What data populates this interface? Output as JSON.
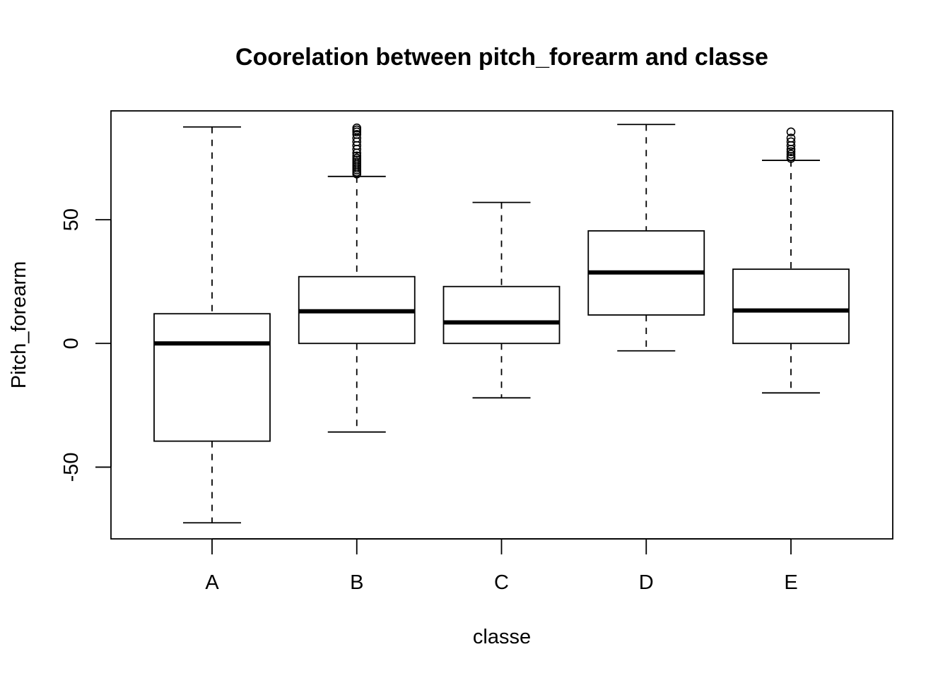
{
  "chart_data": {
    "type": "boxplot",
    "title": "Coorelation between pitch_forearm and classe",
    "xlabel": "classe",
    "ylabel": "Pitch_forearm",
    "ylim": [
      -79,
      94
    ],
    "yticks": [
      -50,
      0,
      50
    ],
    "ytick_labels": [
      "-50",
      "0",
      "50"
    ],
    "grid": false,
    "legend": "none",
    "categories": [
      "A",
      "B",
      "C",
      "D",
      "E"
    ],
    "boxes": [
      {
        "category": "A",
        "whisker_low": -72.5,
        "q1": -39.5,
        "median": 0,
        "q3": 12,
        "whisker_high": 87.5,
        "outliers": []
      },
      {
        "category": "B",
        "whisker_low": -35.8,
        "q1": 0,
        "median": 13,
        "q3": 27,
        "whisker_high": 67.5,
        "outliers": [
          68.5,
          69.3,
          70.1,
          70.9,
          71.7,
          72.5,
          73.3,
          74.1,
          74.9,
          75.8,
          77,
          78.5,
          80,
          81.5,
          83,
          84.5,
          85.5,
          86.3,
          87.1
        ]
      },
      {
        "category": "C",
        "whisker_low": -22,
        "q1": 0,
        "median": 8.5,
        "q3": 23,
        "whisker_high": 57,
        "outliers": []
      },
      {
        "category": "D",
        "whisker_low": -3,
        "q1": 11.5,
        "median": 28.7,
        "q3": 45.5,
        "whisker_high": 88.5,
        "outliers": []
      },
      {
        "category": "E",
        "whisker_low": -20,
        "q1": 0,
        "median": 13.3,
        "q3": 30,
        "whisker_high": 74,
        "outliers": [
          74.8,
          75.6,
          76.5,
          77.5,
          78.5,
          80,
          81.5,
          83,
          85.5
        ]
      }
    ]
  }
}
